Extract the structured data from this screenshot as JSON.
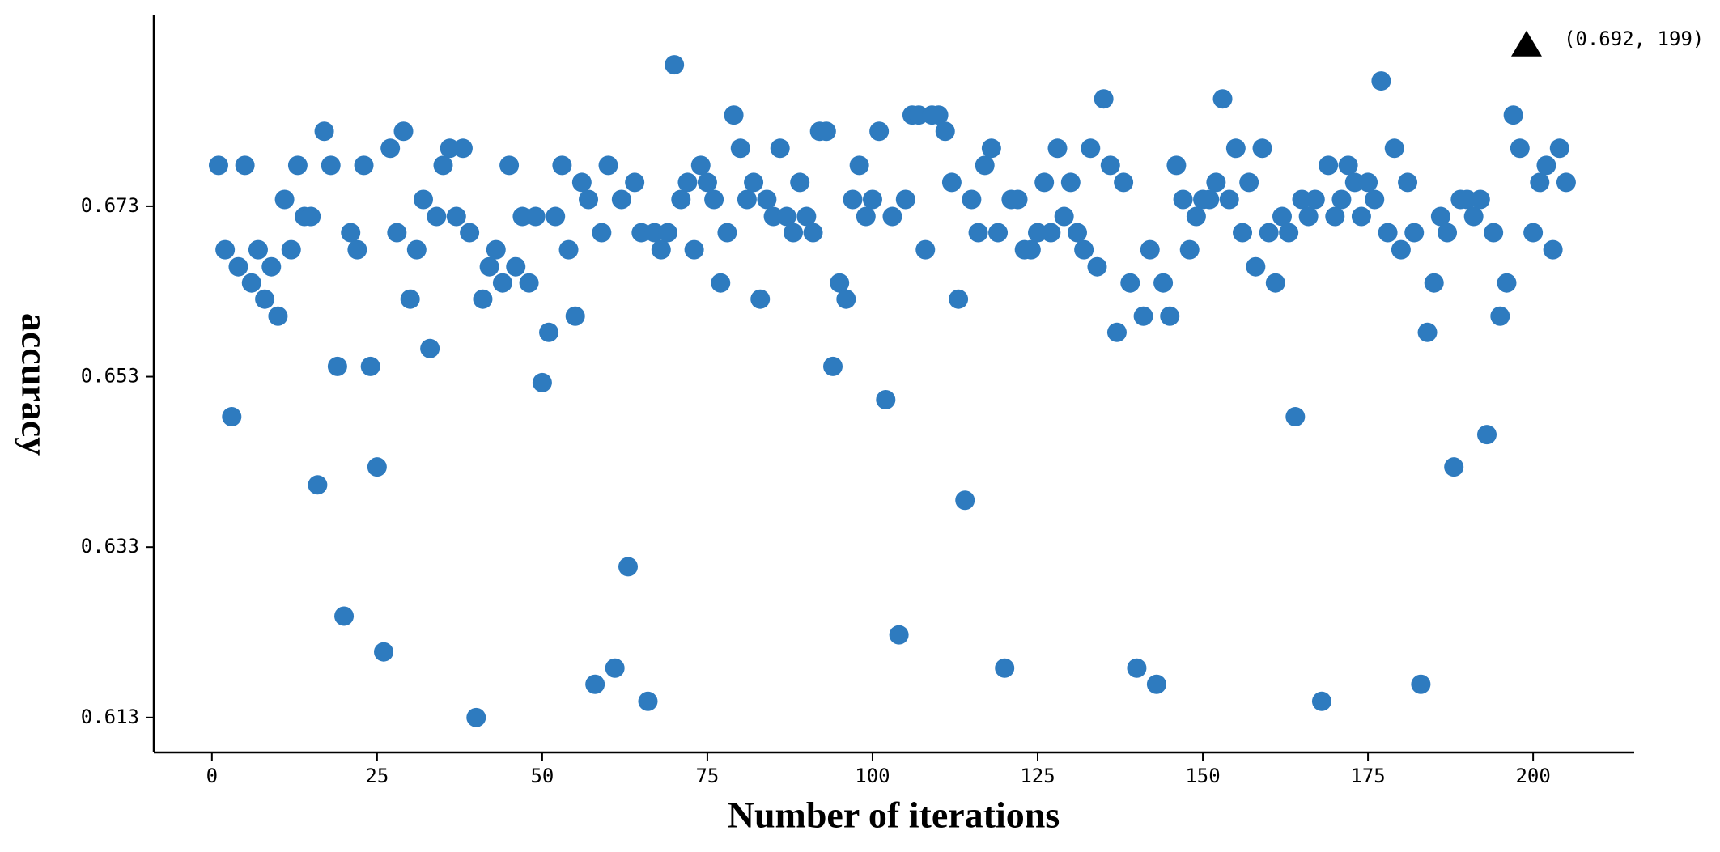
{
  "chart_data": {
    "type": "scatter",
    "xlabel": "Number of iterations",
    "ylabel": "accuracy",
    "xlim": [
      -8.8,
      215.3
    ],
    "ylim": [
      0.6089,
      0.6954
    ],
    "xticks": [
      0,
      25,
      50,
      75,
      100,
      125,
      150,
      175,
      200
    ],
    "yticks": [
      0.613,
      0.633,
      0.653,
      0.673
    ],
    "series": [
      {
        "color": "#2e7bbf",
        "x": [
          1,
          2,
          3,
          4,
          5,
          6,
          7,
          8,
          9,
          10,
          11,
          12,
          13,
          14,
          15,
          16,
          17,
          18,
          19,
          20,
          21,
          22,
          23,
          24,
          25,
          26,
          27,
          28,
          29,
          30,
          31,
          32,
          33,
          34,
          35,
          36,
          37,
          38,
          39,
          40,
          41,
          42,
          43,
          44,
          45,
          46,
          47,
          48,
          49,
          50,
          51,
          52,
          53,
          54,
          55,
          56,
          57,
          58,
          59,
          60,
          61,
          62,
          63,
          64,
          65,
          66,
          67,
          68,
          69,
          70,
          71,
          72,
          73,
          74,
          75,
          76,
          77,
          78,
          79,
          80,
          81,
          82,
          83,
          84,
          85,
          86,
          87,
          88,
          89,
          90,
          91,
          92,
          93,
          94,
          95,
          96,
          97,
          98,
          99,
          100,
          101,
          102,
          103,
          104,
          105,
          106,
          107,
          108,
          109,
          110,
          111,
          112,
          113,
          114,
          115,
          116,
          117,
          118,
          119,
          120,
          121,
          122,
          123,
          124,
          125,
          126,
          127,
          128,
          129,
          130,
          131,
          132,
          133,
          134,
          135,
          136,
          137,
          138,
          139,
          140,
          141,
          142,
          143,
          144,
          145,
          146,
          147,
          148,
          149,
          150,
          151,
          152,
          153,
          154,
          155,
          156,
          157,
          158,
          159,
          160,
          161,
          162,
          163,
          164,
          165,
          166,
          167,
          168,
          169,
          170,
          171,
          172,
          173,
          174,
          175,
          176,
          177,
          178,
          179,
          180,
          181,
          182,
          183,
          184,
          185,
          186,
          187,
          188,
          189,
          190,
          191,
          192,
          193,
          194,
          195,
          196,
          197,
          198,
          200,
          201,
          202,
          203,
          204,
          205
        ],
        "values": [
          0.6778,
          0.6679,
          0.6483,
          0.6659,
          0.6778,
          0.664,
          0.6679,
          0.6621,
          0.6659,
          0.6601,
          0.6738,
          0.6679,
          0.6778,
          0.6718,
          0.6718,
          0.6403,
          0.6818,
          0.6778,
          0.6542,
          0.6249,
          0.6699,
          0.6679,
          0.6778,
          0.6542,
          0.6424,
          0.6207,
          0.6798,
          0.6699,
          0.6818,
          0.6621,
          0.6679,
          0.6738,
          0.6563,
          0.6718,
          0.6778,
          0.6798,
          0.6718,
          0.6798,
          0.6699,
          0.613,
          0.6621,
          0.6659,
          0.6679,
          0.664,
          0.6778,
          0.6659,
          0.6718,
          0.664,
          0.6718,
          0.6523,
          0.6582,
          0.6718,
          0.6778,
          0.6679,
          0.6601,
          0.6758,
          0.6738,
          0.6169,
          0.6699,
          0.6778,
          0.6188,
          0.6738,
          0.6307,
          0.6758,
          0.6699,
          0.6149,
          0.6699,
          0.6679,
          0.6699,
          0.6896,
          0.6738,
          0.6758,
          0.6679,
          0.6778,
          0.6758,
          0.6738,
          0.664,
          0.6699,
          0.6837,
          0.6798,
          0.6738,
          0.6758,
          0.6621,
          0.6738,
          0.6718,
          0.6798,
          0.6718,
          0.6699,
          0.6758,
          0.6718,
          0.6699,
          0.6818,
          0.6818,
          0.6542,
          0.664,
          0.6621,
          0.6738,
          0.6778,
          0.6718,
          0.6738,
          0.6818,
          0.6503,
          0.6718,
          0.6227,
          0.6738,
          0.6837,
          0.6837,
          0.6679,
          0.6837,
          0.6837,
          0.6818,
          0.6758,
          0.6621,
          0.6385,
          0.6738,
          0.6699,
          0.6778,
          0.6798,
          0.6699,
          0.6188,
          0.6738,
          0.6738,
          0.6679,
          0.6679,
          0.6699,
          0.6758,
          0.6699,
          0.6798,
          0.6718,
          0.6758,
          0.6699,
          0.6679,
          0.6798,
          0.6659,
          0.6856,
          0.6778,
          0.6582,
          0.6758,
          0.664,
          0.6188,
          0.6601,
          0.6679,
          0.6169,
          0.664,
          0.6601,
          0.6778,
          0.6738,
          0.6679,
          0.6718,
          0.6738,
          0.6738,
          0.6758,
          0.6856,
          0.6738,
          0.6798,
          0.6699,
          0.6758,
          0.6659,
          0.6798,
          0.6699,
          0.664,
          0.6718,
          0.6699,
          0.6483,
          0.6738,
          0.6718,
          0.6738,
          0.6149,
          0.6778,
          0.6718,
          0.6738,
          0.6778,
          0.6758,
          0.6718,
          0.6758,
          0.6738,
          0.6877,
          0.6699,
          0.6798,
          0.6679,
          0.6758,
          0.6699,
          0.6169,
          0.6582,
          0.664,
          0.6718,
          0.6699,
          0.6424,
          0.6738,
          0.6738,
          0.6718,
          0.6738,
          0.6462,
          0.6699,
          0.6601,
          0.664,
          0.6837,
          0.6798,
          0.6699,
          0.6758,
          0.6778,
          0.6679,
          0.6798,
          0.6758
        ]
      }
    ],
    "annotations": [
      {
        "text": "(0.692, 199)",
        "x": 199,
        "y": 0.692
      }
    ]
  }
}
